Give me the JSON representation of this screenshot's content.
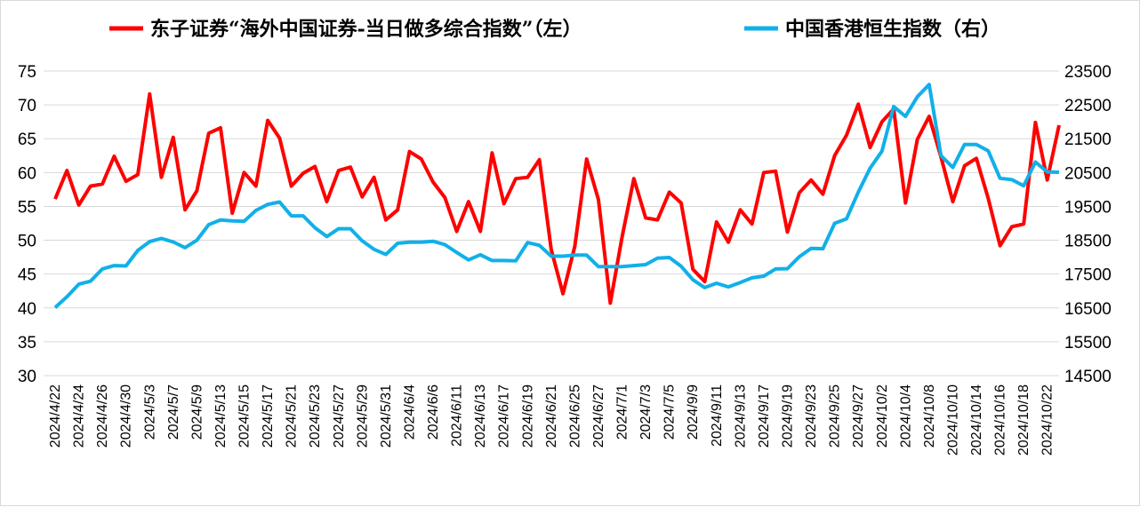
{
  "chart_data": {
    "type": "line",
    "x": [
      "2024/4/22",
      "2024/4/23",
      "2024/4/24",
      "2024/4/25",
      "2024/4/26",
      "2024/4/29",
      "2024/4/30",
      "2024/5/2",
      "2024/5/3",
      "2024/5/6",
      "2024/5/7",
      "2024/5/8",
      "2024/5/9",
      "2024/5/10",
      "2024/5/13",
      "2024/5/14",
      "2024/5/15",
      "2024/5/16",
      "2024/5/17",
      "2024/5/20",
      "2024/5/21",
      "2024/5/22",
      "2024/5/23",
      "2024/5/24",
      "2024/5/27",
      "2024/5/28",
      "2024/5/29",
      "2024/5/30",
      "2024/5/31",
      "2024/6/3",
      "2024/6/4",
      "2024/6/5",
      "2024/6/6",
      "2024/6/7",
      "2024/6/11",
      "2024/6/12",
      "2024/6/13",
      "2024/6/14",
      "2024/6/17",
      "2024/6/18",
      "2024/6/19",
      "2024/6/20",
      "2024/6/21",
      "2024/6/24",
      "2024/6/25",
      "2024/6/26",
      "2024/6/27",
      "2024/6/28",
      "2024/7/1",
      "2024/7/2",
      "2024/7/3",
      "2024/7/4",
      "2024/7/5",
      "2024/7/8",
      "2024/9/9",
      "2024/9/10",
      "2024/9/11",
      "2024/9/12",
      "2024/9/13",
      "2024/9/16",
      "2024/9/17",
      "2024/9/18",
      "2024/9/19",
      "2024/9/20",
      "2024/9/23",
      "2024/9/24",
      "2024/9/25",
      "2024/9/26",
      "2024/9/27",
      "2024/9/30",
      "2024/10/2",
      "2024/10/3",
      "2024/10/4",
      "2024/10/7",
      "2024/10/8",
      "2024/10/9",
      "2024/10/10",
      "2024/10/11",
      "2024/10/14",
      "2024/10/15",
      "2024/10/16",
      "2024/10/17",
      "2024/10/18",
      "2024/10/21",
      "2024/10/22",
      "2024/10/23"
    ],
    "x_tick_labels": [
      "2024/4/22",
      "2024/4/24",
      "2024/4/26",
      "2024/4/30",
      "2024/5/3",
      "2024/5/7",
      "2024/5/9",
      "2024/5/13",
      "2024/5/15",
      "2024/5/17",
      "2024/5/21",
      "2024/5/23",
      "2024/5/27",
      "2024/5/29",
      "2024/5/31",
      "2024/6/4",
      "2024/6/6",
      "2024/6/11",
      "2024/6/13",
      "2024/6/17",
      "2024/6/19",
      "2024/6/21",
      "2024/6/25",
      "2024/6/27",
      "2024/7/1",
      "2024/7/3",
      "2024/7/5",
      "2024/9/9",
      "2024/9/11",
      "2024/9/13",
      "2024/9/17",
      "2024/9/19",
      "2024/9/23",
      "2024/9/25",
      "2024/9/27",
      "2024/10/2",
      "2024/10/4",
      "2024/10/8",
      "2024/10/10",
      "2024/10/14",
      "2024/10/16",
      "2024/10/18",
      "2024/10/22"
    ],
    "series": [
      {
        "name": "东子证券“海外中国证券-当日做多综合指数”（左）",
        "axis": "left",
        "color": "#ff0000",
        "values": [
          56.1,
          60.3,
          55.2,
          58.0,
          58.3,
          62.4,
          58.7,
          59.7,
          71.6,
          59.3,
          65.2,
          54.5,
          57.3,
          65.8,
          66.6,
          54.0,
          60.0,
          58.0,
          67.7,
          65.1,
          58.0,
          59.9,
          60.9,
          55.7,
          60.3,
          60.8,
          56.4,
          59.3,
          53.0,
          54.5,
          63.1,
          62.0,
          58.6,
          56.3,
          51.3,
          55.7,
          51.3,
          62.9,
          55.4,
          59.1,
          59.3,
          61.9,
          48.6,
          42.1,
          49.1,
          62.0,
          56.0,
          40.7,
          50.5,
          59.1,
          53.3,
          53.0,
          57.1,
          55.5,
          45.7,
          43.9,
          52.7,
          49.7,
          54.5,
          52.4,
          60.0,
          60.2,
          51.2,
          57.0,
          58.9,
          56.8,
          62.5,
          65.5,
          70.1,
          63.7,
          67.5,
          69.4,
          55.5,
          64.9,
          68.3,
          62.3,
          55.7,
          61.0,
          62.1,
          56.2,
          49.2,
          52.0,
          52.4,
          67.4,
          58.9,
          67.0
        ]
      },
      {
        "name": "中国香港恒生指数（右）",
        "axis": "right",
        "color": "#11b0e8",
        "values": [
          16510,
          16830,
          17200,
          17290,
          17650,
          17750,
          17740,
          18200,
          18460,
          18550,
          18450,
          18280,
          18500,
          18960,
          19100,
          19070,
          19060,
          19380,
          19560,
          19630,
          19220,
          19220,
          18870,
          18610,
          18840,
          18840,
          18480,
          18230,
          18080,
          18410,
          18440,
          18440,
          18470,
          18370,
          18140,
          17920,
          18070,
          17900,
          17900,
          17890,
          18430,
          18350,
          18030,
          18030,
          18060,
          18060,
          17720,
          17720,
          17720,
          17750,
          17780,
          17970,
          17990,
          17730,
          17330,
          17100,
          17230,
          17120,
          17250,
          17390,
          17440,
          17650,
          17660,
          18010,
          18260,
          18250,
          19000,
          19130,
          19920,
          20630,
          21130,
          22450,
          22160,
          22740,
          23100,
          21000,
          20650,
          21330,
          21330,
          21140,
          20330,
          20290,
          20110,
          20810,
          20520,
          20510
        ]
      }
    ],
    "y_left": {
      "ylim": [
        30,
        75
      ],
      "ticks": [
        30,
        35,
        40,
        45,
        50,
        55,
        60,
        65,
        70,
        75
      ]
    },
    "y_right": {
      "ylim": [
        14500,
        23500
      ],
      "ticks": [
        14500,
        15500,
        16500,
        17500,
        18500,
        19500,
        20500,
        21500,
        22500,
        23500
      ]
    },
    "grid": true,
    "legend_position": "top"
  },
  "colors": {
    "series1": "#ff0000",
    "series2": "#11b0e8",
    "grid": "#d9d9d9"
  }
}
